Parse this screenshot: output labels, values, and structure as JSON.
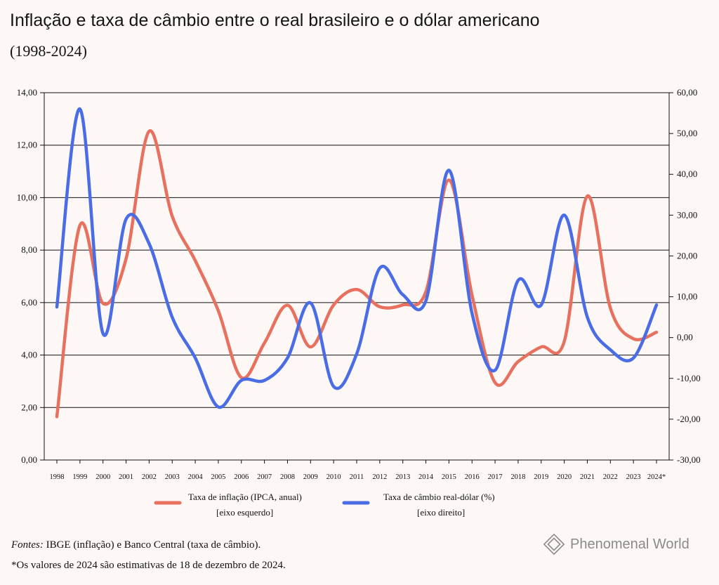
{
  "title": "Inflação e taxa de câmbio entre o real brasileiro e o dólar americano",
  "subtitle": "(1998-2024)",
  "chart_data": {
    "type": "line",
    "categories": [
      "1998",
      "1999",
      "2000",
      "2001",
      "2002",
      "2003",
      "2004",
      "2005",
      "2006",
      "2007",
      "2008",
      "2009",
      "2010",
      "2011",
      "2012",
      "2013",
      "2014",
      "2015",
      "2016",
      "2017",
      "2018",
      "2019",
      "2020",
      "2021",
      "2022",
      "2023",
      "2024*"
    ],
    "y_left": {
      "ticks": [
        "0,00",
        "2,00",
        "4,00",
        "6,00",
        "8,00",
        "10,00",
        "12,00",
        "14,00"
      ],
      "ylim": [
        0,
        14
      ]
    },
    "y_right": {
      "ticks": [
        "-30,00",
        "-20,00",
        "-10,00",
        "0,00",
        "10,00",
        "20,00",
        "30,00",
        "40,00",
        "50,00",
        "60,00"
      ],
      "ylim": [
        -30,
        60
      ]
    },
    "grid": "horizontal",
    "legend_position": "bottom",
    "series": [
      {
        "name": "Taxa de inflação (IPCA, anual)",
        "axis_note": "[eixo esquerdo]",
        "axis": "left",
        "color": "#e8705f",
        "values": [
          1.65,
          8.94,
          5.97,
          7.67,
          12.53,
          9.3,
          7.6,
          5.69,
          3.14,
          4.46,
          5.9,
          4.31,
          5.91,
          6.5,
          5.84,
          5.91,
          6.41,
          10.67,
          6.29,
          2.95,
          3.75,
          4.31,
          4.52,
          10.06,
          5.79,
          4.62,
          4.87
        ]
      },
      {
        "name": "Taxa de câmbio real-dólar (%)",
        "axis_note": "[eixo direito]",
        "axis": "right",
        "color": "#4a6de5",
        "values": [
          7.5,
          56.0,
          1.0,
          29.0,
          23.0,
          5.0,
          -5.0,
          -17.0,
          -10.5,
          -10.5,
          -5.0,
          8.5,
          -12.0,
          -4.0,
          17.0,
          10.5,
          9.0,
          41.0,
          6.0,
          -8.0,
          14.0,
          8.0,
          30.0,
          5.0,
          -3.0,
          -5.0,
          8.0
        ]
      }
    ]
  },
  "footer": {
    "sources_label": "Fontes:",
    "sources_text": "IBGE (inflação) e Banco Central (taxa de câmbio).",
    "note": "*Os valores de 2024 são estimativas de 18 de dezembro de 2024."
  },
  "brand": {
    "name": "Phenomenal World",
    "icon": "diamond-logo-icon"
  }
}
